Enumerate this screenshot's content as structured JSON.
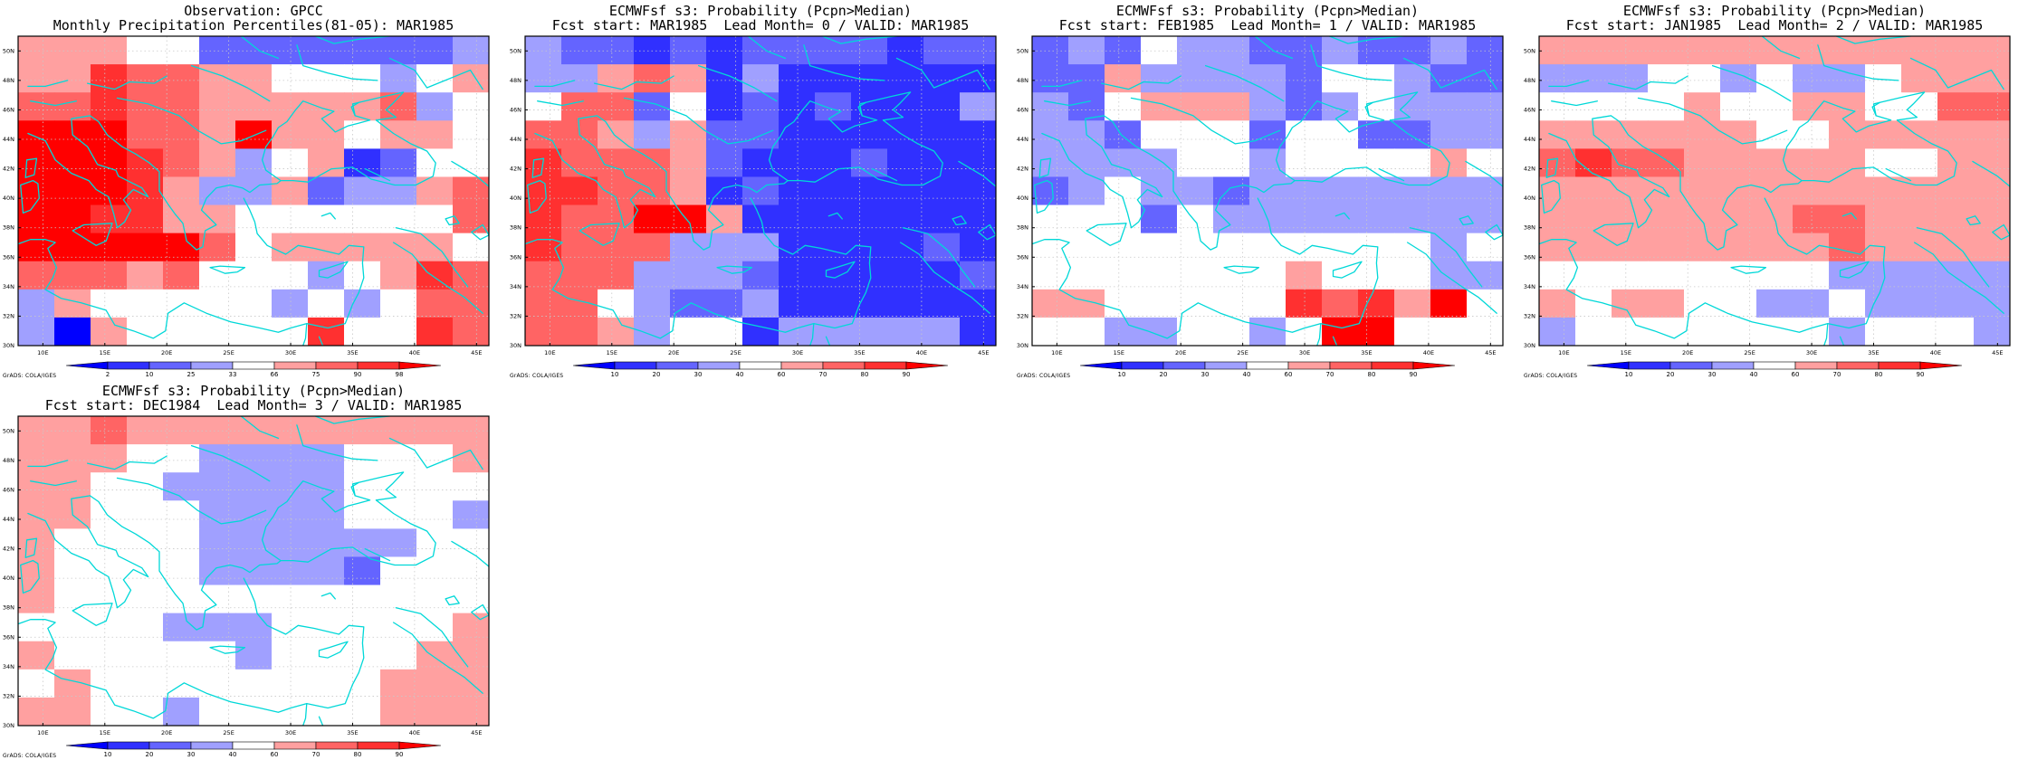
{
  "map_extent": {
    "lon": [
      8,
      46
    ],
    "lat": [
      30,
      51
    ]
  },
  "lat_ticks": [
    "30N",
    "32N",
    "34N",
    "36N",
    "38N",
    "40N",
    "42N",
    "44N",
    "46N",
    "48N",
    "50N"
  ],
  "lon_ticks": [
    "10E",
    "15E",
    "20E",
    "25E",
    "30E",
    "35E",
    "40E",
    "45E"
  ],
  "colors": {
    "coast": "#00d8d8",
    "grid": "#c8c8c8",
    "scale": [
      "#0000ff",
      "#3030ff",
      "#6464ff",
      "#a0a0ff",
      "#ffffff",
      "#ffa0a0",
      "#ff6464",
      "#ff3030",
      "#ff0000"
    ]
  },
  "credit": "GrADS: COLA/IGES",
  "panels": [
    {
      "title1": "Observation: GPCC",
      "title2": "Monthly Precipitation Percentiles(81-05): MAR1985",
      "colorbar_labels": [
        "2",
        "10",
        "25",
        "33",
        "66",
        "75",
        "90",
        "98"
      ],
      "grid": [
        "5554422222223",
        "5576655444345",
        "6676655555634",
        "8886658554554",
        "8887653451244",
        "8887533523356",
        "8877554444446",
        "8888864555554",
        "6665644434576",
        "3544444343466",
        "3054444474476"
      ]
    },
    {
      "title1": "ECMWFsf s3: Probability (Pcpn>Median)",
      "title2": "Fcst start: MAR1985  Lead Month= 0 / VALID: MAR1985",
      "colorbar_labels": [
        "10",
        "20",
        "30",
        "40",
        "60",
        "70",
        "80",
        "90"
      ],
      "grid": [
        "3221212222122",
        "3356513111111",
        "4662412121113",
        "6653522111111",
        "7666521112111",
        "7766512111111",
        "7668851111111",
        "7666333111121",
        "6663332111112",
        "6643223111111",
        "6653441333331"
      ]
    },
    {
      "title1": "ECMWFsf s3: Probability (Pcpn>Median)",
      "title2": "Fcst start: FEB1985  Lead Month= 1 / VALID: MAR1985",
      "colorbar_labels": [
        "10",
        "20",
        "30",
        "40",
        "60",
        "70",
        "80",
        "90"
      ],
      "grid": [
        "2324332232232",
        "2253333244322",
        "3245553234333",
        "3324442442233",
        "3333443444454",
        "2343323333333",
        "4442433333333",
        "4444444444434",
        "4444444544433",
        "5544444767584",
        "4433443488444"
      ]
    },
    {
      "title1": "ECMWFsf s3: Probability (Pcpn>Median)",
      "title2": "Fcst start: JAN1985  Lead Month= 2 / VALID: MAR1985",
      "colorbar_labels": [
        "10",
        "20",
        "30",
        "40",
        "60",
        "70",
        "80",
        "90"
      ],
      "grid": [
        "5555555555555",
        "3334434334555",
        "4444544554466",
        "5555554455555",
        "6766555554455",
        "5555555555555",
        "5555555665555",
        "5555555565555",
        "4444444433333",
        "5455443343333",
        "3444444434443"
      ]
    },
    {
      "title1": "ECMWFsf s3: Probability (Pcpn>Median)",
      "title2": "Fcst start: DEC1984  Lead Month= 3 / VALID: MAR1985",
      "colorbar_labels": [
        "10",
        "20",
        "30",
        "40",
        "60",
        "70",
        "80",
        "90"
      ],
      "grid": [
        "5565555555555",
        "5554433334445",
        "5544333334444",
        "5544433334443",
        "5444433333344",
        "5444433332444",
        "5444444444444",
        "4444333444445",
        "5444443444455",
        "4544444444555",
        "5544344444555"
      ]
    }
  ]
}
